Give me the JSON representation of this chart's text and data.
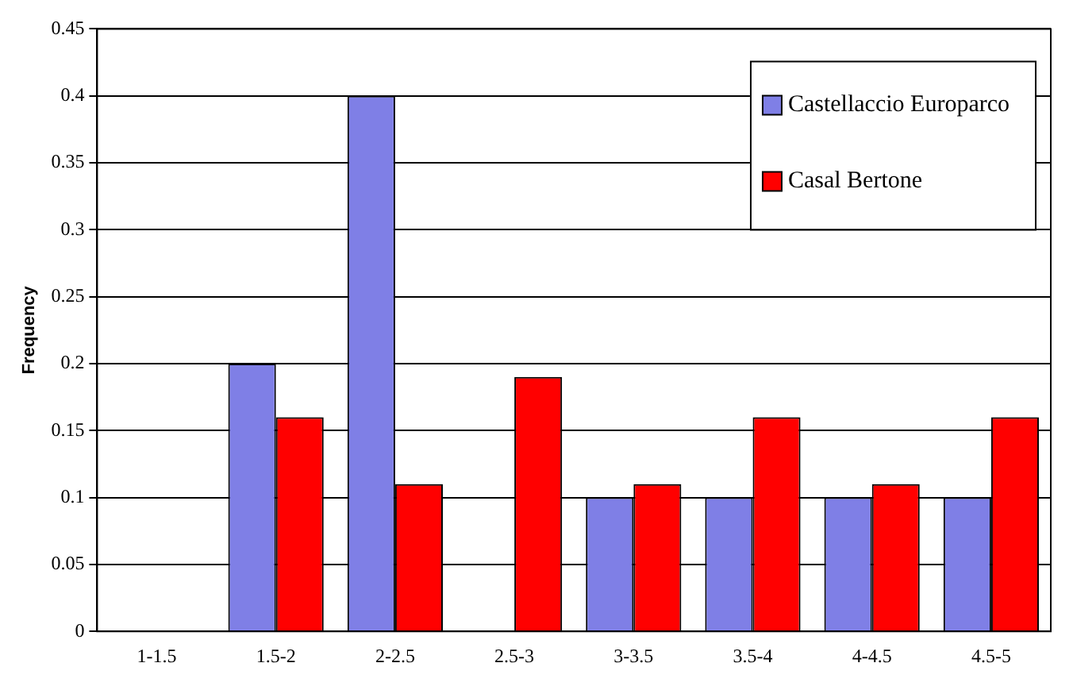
{
  "chart_data": {
    "type": "bar",
    "ylabel": "Frequency",
    "categories": [
      "1-1.5",
      "1.5-2",
      "2-2.5",
      "2.5-3",
      "3-3.5",
      "3.5-4",
      "4-4.5",
      "4.5-5"
    ],
    "series": [
      {
        "name": "Castellaccio Europarco",
        "color": "#7f7fe6",
        "values": [
          0,
          0.2,
          0.4,
          0,
          0.1,
          0.1,
          0.1,
          0.1
        ]
      },
      {
        "name": "Casal Bertone",
        "color": "#ff0000",
        "values": [
          0,
          0.16,
          0.11,
          0.19,
          0.11,
          0.16,
          0.11,
          0.16
        ]
      }
    ],
    "ylim": [
      0,
      0.45
    ],
    "yticks": [
      0,
      0.05,
      0.1,
      0.15,
      0.2,
      0.25,
      0.3,
      0.35,
      0.4,
      0.45
    ],
    "grid": "y",
    "legend": "top right"
  }
}
